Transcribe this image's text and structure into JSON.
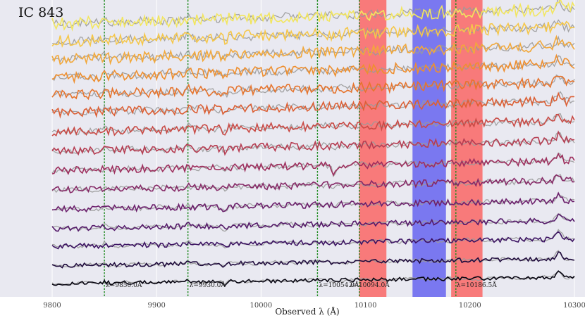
{
  "chart_data": {
    "type": "line",
    "title": "IC 843",
    "xlabel": "Observed λ (Å)",
    "xlim": [
      9800,
      10300
    ],
    "xticks": [
      9800,
      9900,
      10000,
      10100,
      10200,
      10300
    ],
    "xtick_labels": [
      "9800",
      "9900",
      "10000",
      "10100",
      "10200",
      "10300"
    ],
    "vertical_lines": [
      {
        "x": 9850.0,
        "label": "λ=9850.0Å"
      },
      {
        "x": 9930.0,
        "label": "λ=9930.0Å"
      },
      {
        "x": 10054.0,
        "label": "λ=10054.0Å"
      },
      {
        "x": 10094.0,
        "label": "λ=10094.0Å"
      },
      {
        "x": 10186.5,
        "label": "λ=10186.5Å"
      }
    ],
    "masked_bands": [
      {
        "x0": 10094,
        "x1": 10120,
        "color": "#f87a7a"
      },
      {
        "x0": 10145,
        "x1": 10177,
        "color": "#7a78f0"
      },
      {
        "x0": 10182,
        "x1": 10212,
        "color": "#f87a7a"
      }
    ],
    "n_spectra": 15,
    "series_colors": [
      "#f2e65f",
      "#f5c74a",
      "#f2a83a",
      "#ee8f2f",
      "#e6742d",
      "#dc5f34",
      "#c94a45",
      "#b63d52",
      "#9e2f5e",
      "#862967",
      "#6c1f6c",
      "#551a6a",
      "#3c1362",
      "#200c3d",
      "#060410"
    ],
    "model_color": "#9a9a9a",
    "offsets": [
      0.92,
      0.86,
      0.8,
      0.74,
      0.68,
      0.62,
      0.555,
      0.49,
      0.425,
      0.36,
      0.295,
      0.23,
      0.17,
      0.105,
      0.045
    ]
  }
}
